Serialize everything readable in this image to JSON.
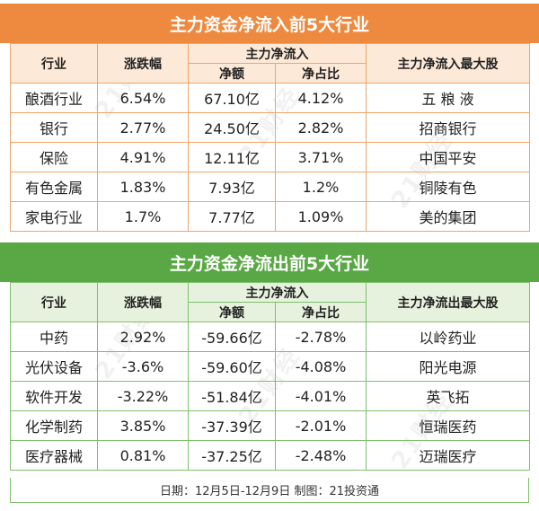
{
  "inflow": {
    "title": "主力资金净流入前5大行业",
    "headers": {
      "industry": "行业",
      "change": "涨跌幅",
      "net_group": "主力净流入",
      "net_amount": "净额",
      "net_ratio": "净占比",
      "top_stock": "主力净流入最大股"
    },
    "rows": [
      {
        "industry": "酿酒行业",
        "change": "6.54%",
        "net_amount": "67.10亿",
        "net_ratio": "4.12%",
        "top_stock": "五 粮 液"
      },
      {
        "industry": "银行",
        "change": "2.77%",
        "net_amount": "24.50亿",
        "net_ratio": "2.82%",
        "top_stock": "招商银行"
      },
      {
        "industry": "保险",
        "change": "4.91%",
        "net_amount": "12.11亿",
        "net_ratio": "3.71%",
        "top_stock": "中国平安"
      },
      {
        "industry": "有色金属",
        "change": "1.83%",
        "net_amount": "7.93亿",
        "net_ratio": "1.2%",
        "top_stock": "铜陵有色"
      },
      {
        "industry": "家电行业",
        "change": "1.7%",
        "net_amount": "7.77亿",
        "net_ratio": "1.09%",
        "top_stock": "美的集团"
      }
    ]
  },
  "outflow": {
    "title": "主力资金净流出前5大行业",
    "headers": {
      "industry": "行业",
      "change": "涨跌幅",
      "net_group": "主力净流入",
      "net_amount": "净额",
      "net_ratio": "净占比",
      "top_stock": "主力净流出最大股"
    },
    "rows": [
      {
        "industry": "中药",
        "change": "2.92%",
        "net_amount": "-59.66亿",
        "net_ratio": "-2.78%",
        "top_stock": "以岭药业"
      },
      {
        "industry": "光伏设备",
        "change": "-3.6%",
        "net_amount": "-59.60亿",
        "net_ratio": "-4.08%",
        "top_stock": "阳光电源"
      },
      {
        "industry": "软件开发",
        "change": "-3.22%",
        "net_amount": "-51.84亿",
        "net_ratio": "-4.01%",
        "top_stock": "英飞拓"
      },
      {
        "industry": "化学制药",
        "change": "3.85%",
        "net_amount": "-37.39亿",
        "net_ratio": "-2.01%",
        "top_stock": "恒瑞医药"
      },
      {
        "industry": "医疗器械",
        "change": "0.81%",
        "net_amount": "-37.25亿",
        "net_ratio": "-2.48%",
        "top_stock": "迈瑞医疗"
      }
    ]
  },
  "footer": "日期：12月5日-12月9日  制图：21投资通",
  "watermark": "21财经",
  "colors": {
    "inflow_banner": "#ee8a3f",
    "outflow_banner": "#5aa845"
  }
}
